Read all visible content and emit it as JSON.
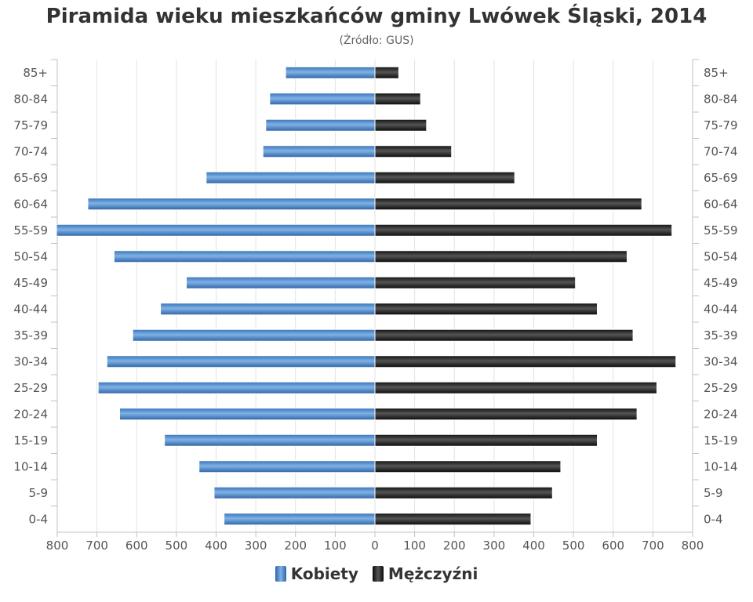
{
  "chart_data": {
    "type": "bar",
    "orientation": "horizontal-population-pyramid",
    "title": "Piramida wieku mieszkańców gminy Lwówek Śląski, 2014",
    "subtitle": "(Źródło: GUS)",
    "categories": [
      "85+",
      "80-84",
      "75-79",
      "70-74",
      "65-69",
      "60-64",
      "55-59",
      "50-54",
      "45-49",
      "40-44",
      "35-39",
      "30-34",
      "25-29",
      "20-24",
      "15-19",
      "10-14",
      "5-9",
      "0-4"
    ],
    "series": [
      {
        "name": "Kobiety",
        "side": "left",
        "color": "#4a86c8",
        "values": [
          225,
          265,
          275,
          282,
          425,
          723,
          802,
          657,
          475,
          540,
          610,
          675,
          697,
          643,
          530,
          443,
          405,
          380
        ]
      },
      {
        "name": "Mężczyźni",
        "side": "right",
        "color": "#222222",
        "values": [
          60,
          115,
          130,
          193,
          352,
          672,
          748,
          635,
          505,
          560,
          650,
          758,
          710,
          660,
          560,
          468,
          447,
          393
        ]
      }
    ],
    "xlim": [
      -800,
      800
    ],
    "x_ticks": [
      800,
      700,
      600,
      500,
      400,
      300,
      200,
      100,
      0,
      100,
      200,
      300,
      400,
      500,
      600,
      700,
      800
    ],
    "grid": true,
    "legend_position": "bottom"
  }
}
